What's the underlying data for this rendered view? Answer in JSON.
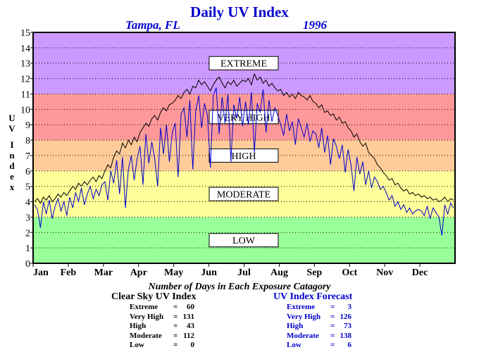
{
  "title": "Daily UV Index",
  "location": "Tampa, FL",
  "year": "1996",
  "chart_data": {
    "type": "line",
    "title": "Daily UV Index",
    "ylabel": "UV Index",
    "xlabel": "",
    "ylim": [
      0,
      15
    ],
    "yticks": [
      "0",
      "1",
      "2",
      "3",
      "4",
      "5",
      "6",
      "7",
      "8",
      "9",
      "10",
      "11",
      "12",
      "13",
      "14",
      "15"
    ],
    "xticks": [
      "Jan",
      "Feb",
      "Mar",
      "Apr",
      "May",
      "Jun",
      "Jul",
      "Aug",
      "Sep",
      "Oct",
      "Nov",
      "Dec"
    ],
    "grid": "horizontal dotted",
    "bands": [
      {
        "label": "LOW",
        "from": 0,
        "to": 3,
        "color": "#99ff99"
      },
      {
        "label": "MODERATE",
        "from": 3,
        "to": 6,
        "color": "#ffff99"
      },
      {
        "label": "HIGH",
        "from": 6,
        "to": 8,
        "color": "#ffcc99"
      },
      {
        "label": "VERY HIGH",
        "from": 8,
        "to": 11,
        "color": "#ff9999"
      },
      {
        "label": "EXTREME",
        "from": 11,
        "to": 15,
        "color": "#cc99ff"
      }
    ],
    "series": [
      {
        "name": "Clear Sky UV Index",
        "color": "#000000",
        "monthly_values": [
          [
            4.0,
            4.2,
            3.9,
            4.3,
            4.1,
            4.4,
            4.0,
            4.2,
            4.5,
            4.3,
            4.6,
            4.4
          ],
          [
            4.7,
            5.0,
            4.8,
            5.2,
            5.0,
            5.3,
            5.1,
            5.4,
            5.6,
            5.3,
            5.7,
            5.5
          ],
          [
            6.0,
            6.4,
            6.2,
            6.9,
            7.3,
            7.1,
            7.8,
            7.5,
            8.0,
            7.7,
            8.2,
            7.9
          ],
          [
            8.5,
            8.8,
            9.1,
            8.9,
            9.4,
            9.6,
            9.3,
            9.8,
            10.1,
            9.9,
            10.3,
            10.4
          ],
          [
            10.6,
            10.9,
            10.7,
            11.1,
            11.3,
            11.0,
            11.5,
            11.4,
            11.9,
            11.6,
            11.8,
            11.5
          ],
          [
            11.2,
            11.6,
            11.9,
            12.1,
            11.7,
            11.4,
            11.8,
            11.6,
            11.9,
            11.5,
            11.7,
            11.9
          ],
          [
            11.8,
            12.0,
            11.6,
            12.3,
            11.9,
            12.1,
            11.7,
            11.9,
            11.5,
            11.7,
            11.4,
            11.2
          ],
          [
            11.3,
            10.9,
            11.1,
            10.8,
            11.0,
            10.7,
            11.1,
            10.9,
            10.8,
            10.6,
            10.9,
            10.5
          ],
          [
            10.4,
            10.1,
            10.3,
            9.8,
            9.9,
            9.6,
            9.7,
            9.3,
            9.5,
            9.1,
            9.2,
            8.8
          ],
          [
            8.6,
            8.2,
            8.4,
            7.9,
            7.6,
            7.8,
            7.2,
            7.0,
            6.8,
            6.4,
            6.2,
            5.9
          ],
          [
            5.7,
            5.4,
            5.5,
            5.1,
            5.2,
            4.9,
            4.7,
            4.8,
            4.5,
            4.6,
            4.4,
            4.5
          ],
          [
            4.3,
            4.4,
            4.2,
            4.3,
            4.1,
            4.2,
            4.0,
            4.1,
            4.3,
            4.0,
            4.2,
            4.1
          ]
        ]
      },
      {
        "name": "UV Index Forecast",
        "color": "#0000cc",
        "monthly_values": [
          [
            3.8,
            3.5,
            2.3,
            4.0,
            3.2,
            4.1,
            2.9,
            3.7,
            4.2,
            3.4,
            4.0,
            3.1
          ],
          [
            4.3,
            3.6,
            4.6,
            4.0,
            4.9,
            3.8,
            4.5,
            5.0,
            4.2,
            4.8,
            4.4,
            5.1
          ],
          [
            5.3,
            4.1,
            6.0,
            5.2,
            6.7,
            4.5,
            6.9,
            3.6,
            6.1,
            7.0,
            5.4,
            6.8
          ],
          [
            7.6,
            5.1,
            8.4,
            6.5,
            7.9,
            6.8,
            5.0,
            8.8,
            7.1,
            9.0,
            6.6,
            8.5
          ],
          [
            9.1,
            5.6,
            9.7,
            10.1,
            8.2,
            10.6,
            6.1,
            9.9,
            10.9,
            8.8,
            10.4,
            9.6
          ],
          [
            6.2,
            10.9,
            11.4,
            8.4,
            10.8,
            9.1,
            11.0,
            6.6,
            10.3,
            9.4,
            10.8,
            8.9
          ],
          [
            10.5,
            9.0,
            11.1,
            7.2,
            10.4,
            9.8,
            11.3,
            8.5,
            10.6,
            9.2,
            10.1,
            9.6
          ],
          [
            9.0,
            8.3,
            9.7,
            8.6,
            9.2,
            7.7,
            9.4,
            8.8,
            8.2,
            9.1,
            7.9,
            8.6
          ],
          [
            8.4,
            7.5,
            8.8,
            7.2,
            8.3,
            6.4,
            8.1,
            7.6,
            6.8,
            7.7,
            5.9,
            7.4
          ],
          [
            6.4,
            4.7,
            6.9,
            5.8,
            6.6,
            5.1,
            6.0,
            4.9,
            5.6,
            5.3,
            4.8,
            5.0
          ],
          [
            4.6,
            4.1,
            4.4,
            3.7,
            4.0,
            3.5,
            3.8,
            3.3,
            3.6,
            3.2,
            3.4,
            3.5
          ],
          [
            3.4,
            3.1,
            3.7,
            2.9,
            3.6,
            3.3,
            3.0,
            1.8,
            3.8,
            3.2,
            3.9,
            3.6
          ]
        ]
      }
    ]
  },
  "counts": {
    "title": "Number of Days in Each Exposure Catagory",
    "clear_sky": {
      "heading": "Clear Sky UV Index",
      "rows": [
        {
          "label": "Extreme",
          "value": "60"
        },
        {
          "label": "Very High",
          "value": "131"
        },
        {
          "label": "High",
          "value": "43"
        },
        {
          "label": "Moderate",
          "value": "112"
        },
        {
          "label": "Low",
          "value": "0"
        }
      ]
    },
    "forecast": {
      "heading": "UV Index Forecast",
      "rows": [
        {
          "label": "Extreme",
          "value": "3"
        },
        {
          "label": "Very High",
          "value": "126"
        },
        {
          "label": "High",
          "value": "73"
        },
        {
          "label": "Moderate",
          "value": "138"
        },
        {
          "label": "Low",
          "value": "6"
        }
      ]
    }
  }
}
